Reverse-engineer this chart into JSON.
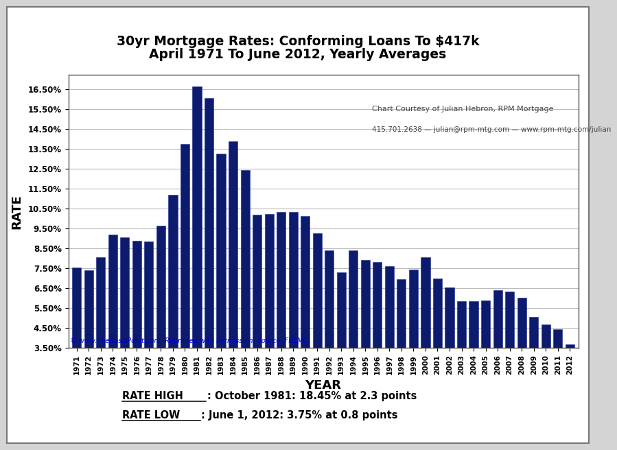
{
  "title_line1": "30yr Mortgage Rates: Conforming Loans To $417k",
  "title_line2": "April 1971 To June 2012, Yearly Averages",
  "xlabel": "YEAR",
  "ylabel": "RATE",
  "years": [
    1971,
    1972,
    1973,
    1974,
    1975,
    1976,
    1977,
    1978,
    1979,
    1980,
    1981,
    1982,
    1983,
    1984,
    1985,
    1986,
    1987,
    1988,
    1989,
    1990,
    1991,
    1992,
    1993,
    1994,
    1995,
    1996,
    1997,
    1998,
    1999,
    2000,
    2001,
    2002,
    2003,
    2004,
    2005,
    2006,
    2007,
    2008,
    2009,
    2010,
    2011,
    2012
  ],
  "rates": [
    7.54,
    7.38,
    8.04,
    9.19,
    9.05,
    8.87,
    8.85,
    9.64,
    11.2,
    13.74,
    16.63,
    16.04,
    13.24,
    13.88,
    12.43,
    10.19,
    10.21,
    10.34,
    10.32,
    10.13,
    9.25,
    8.39,
    7.31,
    8.38,
    7.93,
    7.81,
    7.6,
    6.94,
    7.44,
    8.05,
    6.97,
    6.54,
    5.83,
    5.84,
    5.87,
    6.41,
    6.34,
    6.03,
    5.04,
    4.69,
    4.45,
    3.66
  ],
  "bar_color": "#0d1b6e",
  "background_color": "#ffffff",
  "outer_bg_color": "#d4d4d4",
  "grid_color": "#bbbbbb",
  "ytick_labels": [
    "3.50%",
    "4.50%",
    "5.50%",
    "6.50%",
    "7.50%",
    "8.50%",
    "9.50%",
    "10.50%",
    "11.50%",
    "12.50%",
    "13.50%",
    "14.50%",
    "15.50%",
    "16.50%"
  ],
  "ytick_values": [
    3.5,
    4.5,
    5.5,
    6.5,
    7.5,
    8.5,
    9.5,
    10.5,
    11.5,
    12.5,
    13.5,
    14.5,
    15.5,
    16.5
  ],
  "ylim": [
    3.5,
    17.2
  ],
  "annotation1": "Chart Courtesy of Julian Hebron, RPM Mortgage",
  "annotation2": "415.701.2638 — julian@rpm-mtg.com — www.rpm-mtg.com/julian",
  "watermark": "© www.TheBasisPoint.com, Reprinted with Permission. Source: FHLMC",
  "footer_high_label": "RATE HIGH",
  "footer_high_text": ": October 1981: 18.45% at 2.3 points",
  "footer_low_label": "RATE LOW",
  "footer_low_text": ": June 1, 2012: 3.75% at 0.8 points"
}
